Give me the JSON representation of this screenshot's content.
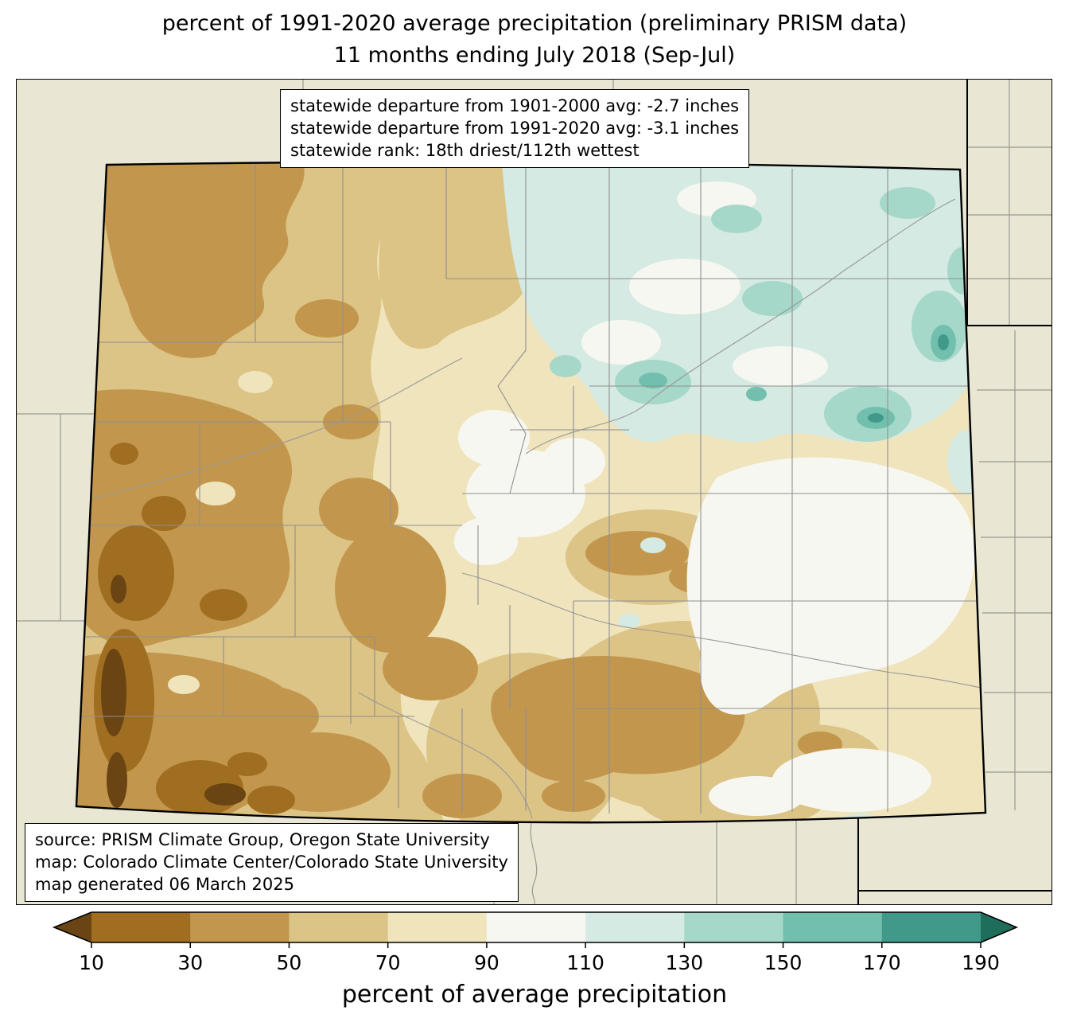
{
  "title": {
    "line1": "percent of 1991-2020 average precipitation (preliminary PRISM data)",
    "line2": "11 months ending July 2018 (Sep-Jul)"
  },
  "stats_box": {
    "line1": "statewide departure from 1901-2000 avg: -2.7 inches",
    "line2": "statewide departure from 1991-2020 avg: -3.1 inches",
    "line3": "statewide rank: 18th driest/112th wettest"
  },
  "source_box": {
    "line1": "source: PRISM Climate Group, Oregon State University",
    "line2": "map: Colorado Climate Center/Colorado State University",
    "line3": "map generated 06 March 2025"
  },
  "colorbar": {
    "label": "percent of average precipitation",
    "ticks": [
      "10",
      "30",
      "50",
      "70",
      "90",
      "110",
      "130",
      "150",
      "170",
      "190"
    ],
    "segment_colors": [
      "#a06e21",
      "#c2974d",
      "#dcc386",
      "#f0e4bd",
      "#f7f7f1",
      "#d4eae3",
      "#a6d8ca",
      "#72bfae",
      "#41998a"
    ],
    "arrow_left_color": "#6b4413",
    "arrow_right_color": "#1f6e5c"
  },
  "palette": {
    "below_10": "#6b4413",
    "p10_30": "#a06e21",
    "p30_50": "#c2974d",
    "p50_70": "#dcc386",
    "p70_90": "#f0e4bd",
    "p90_110": "#f7f7f1",
    "p110_130": "#d4eae3",
    "p130_150": "#a6d8ca",
    "p150_170": "#72bfae",
    "p170_190": "#41998a",
    "outside_background": "#e9e6d3",
    "boundary_gray": "#8f8f8f",
    "border_black": "#000000"
  }
}
